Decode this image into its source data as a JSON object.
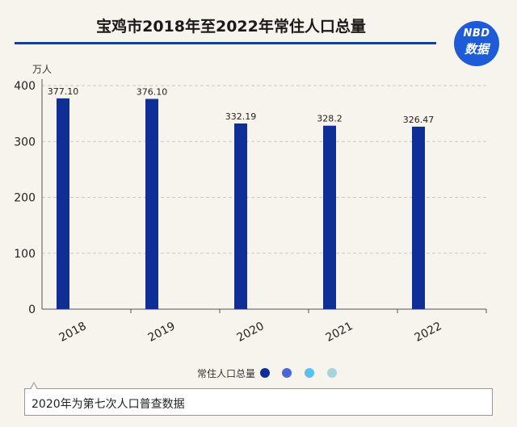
{
  "title": "宝鸡市2018年至2022年常住人口总量",
  "logo": {
    "line1": "NBD",
    "line2": "数据"
  },
  "note": "2020年为第七次人口普查数据",
  "legend": {
    "label": "常住人口总量",
    "dot_colors": [
      "#0f2f96",
      "#4a67d8",
      "#5bc0f0",
      "#a7d3dc"
    ]
  },
  "colors": {
    "bar": "#0f2f96"
  },
  "chart_data": {
    "type": "bar",
    "categories": [
      "2018",
      "2019",
      "2020",
      "2021",
      "2022"
    ],
    "series": [
      {
        "name": "常住人口总量",
        "values": [
          377.1,
          376.1,
          332.19,
          328.2,
          326.47
        ]
      }
    ],
    "value_labels": [
      "377.10",
      "376.10",
      "332.19",
      "328.2",
      "326.47"
    ],
    "ylabel": "万人",
    "xlabel": "",
    "ylim": [
      0,
      400
    ],
    "yticks": [
      0,
      100,
      200,
      300,
      400
    ],
    "grid": true,
    "legend_position": "bottom"
  }
}
